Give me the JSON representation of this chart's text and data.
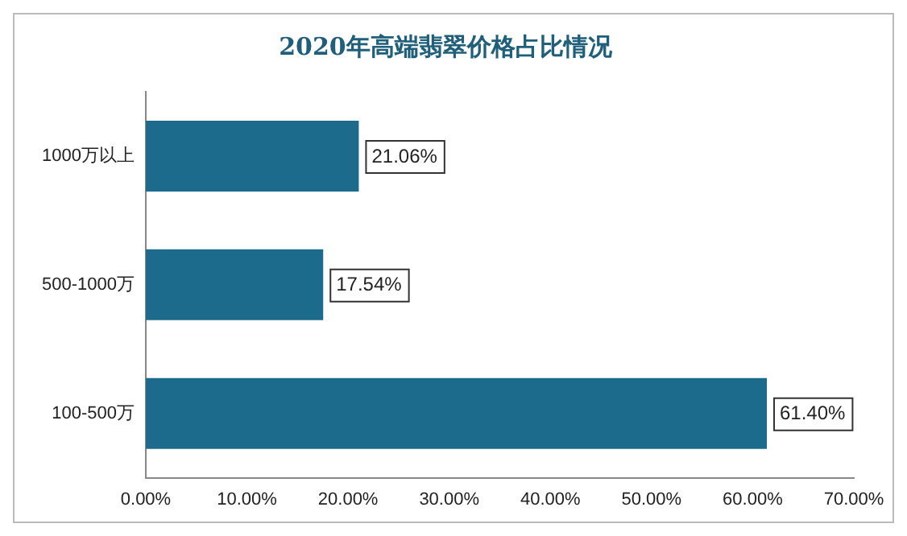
{
  "chart_data": {
    "type": "bar",
    "orientation": "horizontal",
    "title": "2020年高端翡翠价格占比情况",
    "categories": [
      "1000万以上",
      "500-1000万",
      "100-500万"
    ],
    "values": [
      21.06,
      17.54,
      61.4
    ],
    "value_labels": [
      "21.06%",
      "17.54%",
      "61.40%"
    ],
    "color": "#1c6b8c",
    "xlim": [
      0,
      70
    ],
    "xticks": [
      {
        "value": 0,
        "label": "0.00%"
      },
      {
        "value": 10,
        "label": "10.00%"
      },
      {
        "value": 20,
        "label": "20.00%"
      },
      {
        "value": 30,
        "label": "30.00%"
      },
      {
        "value": 40,
        "label": "40.00%"
      },
      {
        "value": 50,
        "label": "50.00%"
      },
      {
        "value": 60,
        "label": "60.00%"
      },
      {
        "value": 70,
        "label": "70.00%"
      }
    ],
    "grid": false,
    "legend": false
  }
}
